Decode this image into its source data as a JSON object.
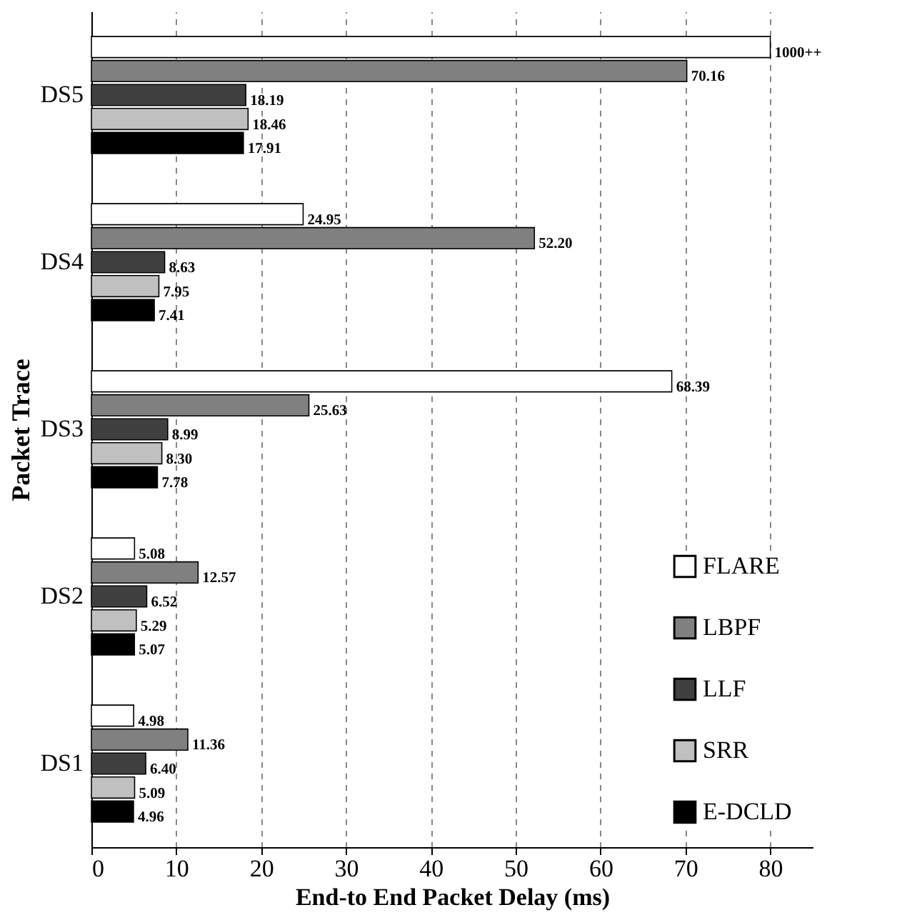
{
  "chart_data": {
    "type": "bar",
    "orientation": "horizontal",
    "xlabel": "End-to End Packet Delay (ms)",
    "ylabel": "Packet Trace",
    "categories": [
      "DS5",
      "DS4",
      "DS3",
      "DS2",
      "DS1"
    ],
    "series": [
      {
        "name": "FLARE",
        "color": "#ffffff",
        "values": [
          80,
          24.95,
          68.39,
          5.08,
          4.98
        ],
        "value_labels": [
          "1000++",
          "24.95",
          "68.39",
          "5.08",
          "4.98"
        ]
      },
      {
        "name": "LBPF",
        "color": "#808080",
        "values": [
          70.16,
          52.2,
          25.63,
          12.57,
          11.36
        ],
        "value_labels": [
          "70.16",
          "52.20",
          "25.63",
          "12.57",
          "11.36"
        ]
      },
      {
        "name": "LLF",
        "color": "#404040",
        "values": [
          18.19,
          8.63,
          8.99,
          6.52,
          6.4
        ],
        "value_labels": [
          "18.19",
          "8.63",
          "8.99",
          "6.52",
          "6.40"
        ]
      },
      {
        "name": "SRR",
        "color": "#c0c0c0",
        "values": [
          18.46,
          7.95,
          8.3,
          5.29,
          5.09
        ],
        "value_labels": [
          "18.46",
          "7.95",
          "8.30",
          "5.29",
          "5.09"
        ]
      },
      {
        "name": "E-DCLD",
        "color": "#000000",
        "values": [
          17.91,
          7.41,
          7.78,
          5.07,
          4.96
        ],
        "value_labels": [
          "17.91",
          "7.41",
          "7.78",
          "5.07",
          "4.96"
        ]
      }
    ],
    "xlim": [
      0,
      85
    ],
    "xticks": [
      0,
      10,
      20,
      30,
      40,
      50,
      60,
      70,
      80
    ],
    "grid": "x",
    "legend": "bottom right"
  }
}
